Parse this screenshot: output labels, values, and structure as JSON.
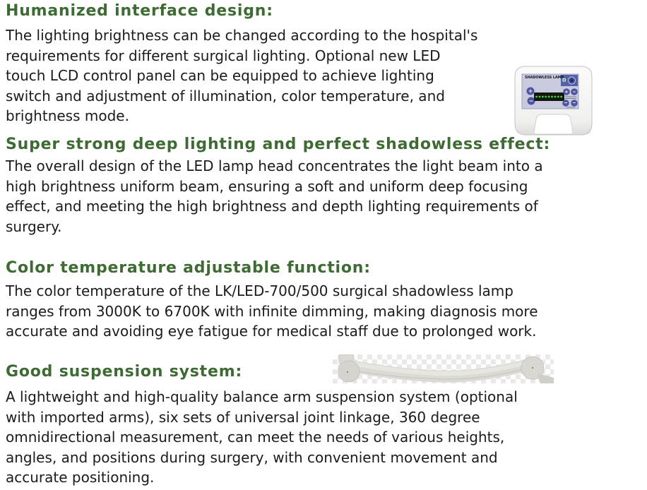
{
  "colors": {
    "heading_green": "#3e6b33",
    "body_text": "#1b1b1b",
    "panel_face": "#c9cade",
    "panel_blue": "#5460a8",
    "button_blue": "#4d55a3",
    "display_dark": "#101810"
  },
  "sections": [
    {
      "heading": "Humanized interface design:",
      "body": "The lighting brightness can be changed according to the hospital's\nrequirements for different surgical lighting. Optional new LED\ntouch LCD control panel can be equipped to achieve lighting\nswitch and adjustment of illumination, color temperature, and\nbrightness mode."
    },
    {
      "heading": "Super strong deep lighting and perfect shadowless effect:",
      "body": "The overall design of the LED lamp head concentrates the light beam into a\nhigh brightness uniform beam, ensuring a soft and uniform deep focusing\neffect, and meeting the high brightness and depth lighting requirements of\nsurgery."
    },
    {
      "heading": "Color temperature adjustable function:",
      "body": "The color temperature of the LK/LED-700/500 surgical shadowless lamp\nranges from 3000K to 6700K with infinite dimming, making diagnosis more\naccurate and avoiding eye fatigue for medical staff due to prolonged work."
    },
    {
      "heading": "Good suspension system:",
      "body": "A lightweight and high-quality balance arm suspension system (optional\nwith imported arms), six sets of universal joint linkage, 360 degree\nomnidirectional measurement, can meet the needs of various heights,\nangles, and positions during surgery, with convenient movement and\naccurate positioning."
    }
  ],
  "control_panel": {
    "label": "SHADOWLESS LAMP",
    "led_count": 9,
    "led_color": "#4ed24e"
  }
}
